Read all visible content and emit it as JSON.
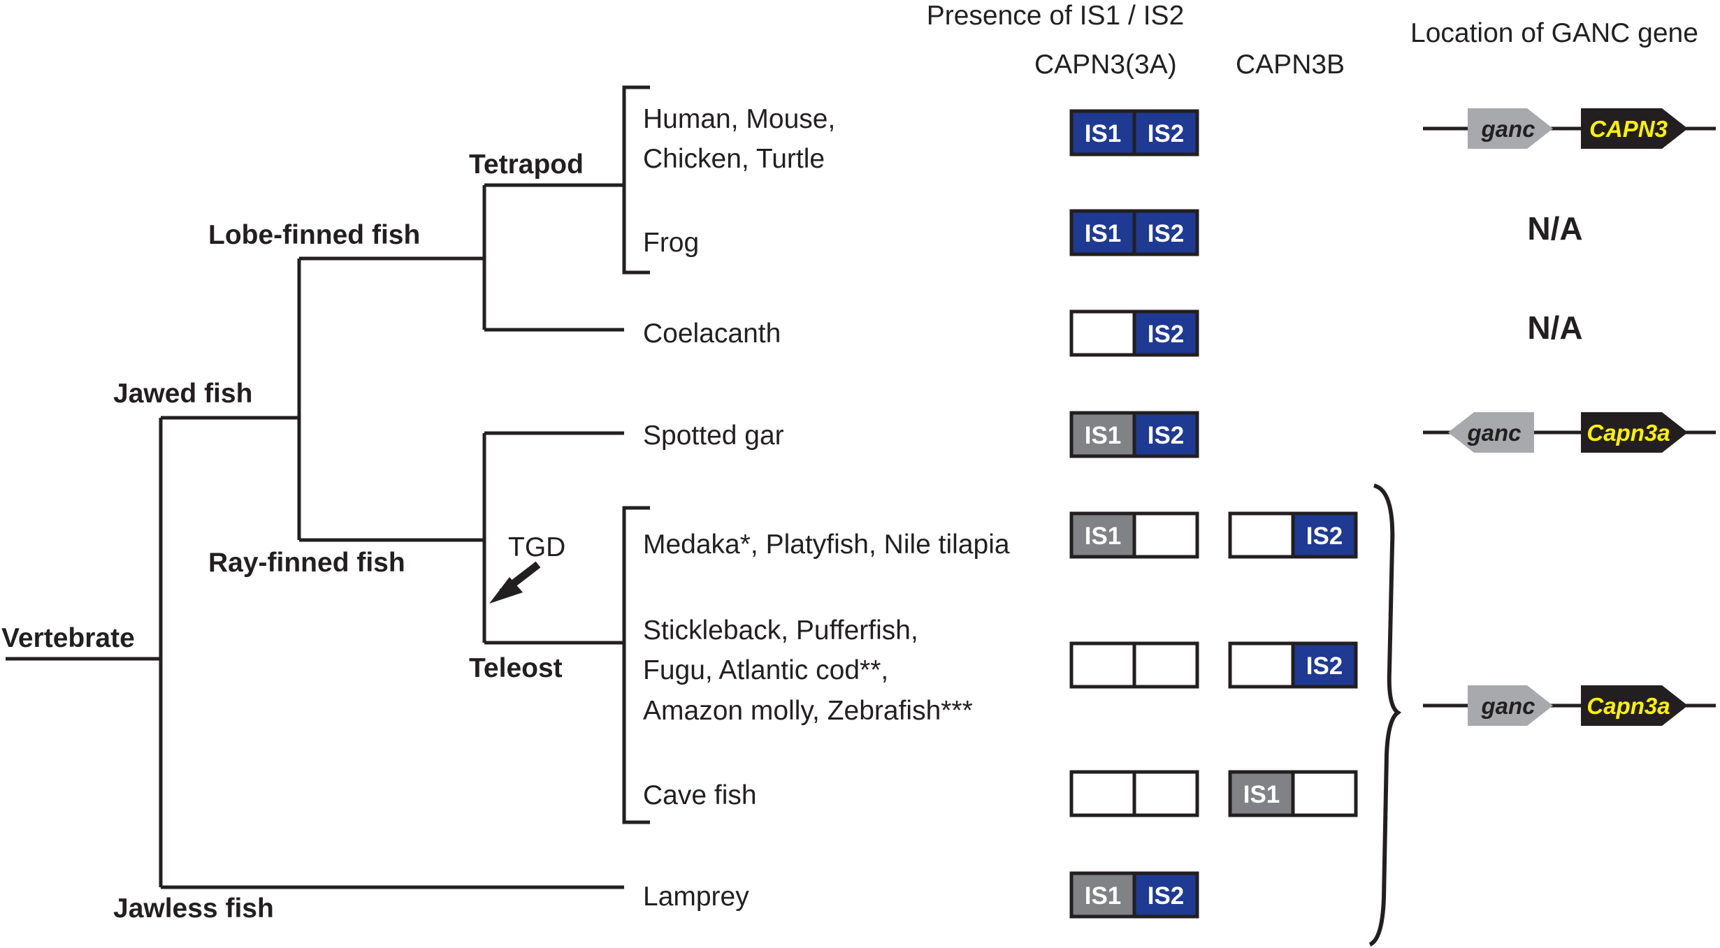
{
  "headers": {
    "presence": "Presence of IS1 / IS2",
    "capn3a": "CAPN3(3A)",
    "capn3b": "CAPN3B",
    "location": "Location of GANC gene"
  },
  "tree": {
    "vertebrate": "Vertebrate",
    "jawed": "Jawed fish",
    "jawless": "Jawless fish",
    "lobe": "Lobe-finned fish",
    "ray": "Ray-finned fish",
    "tetrapod": "Tetrapod",
    "teleost": "Teleost",
    "tgd": "TGD"
  },
  "species": {
    "human_line1": "Human, Mouse,",
    "human_line2": "Chicken, Turtle",
    "frog": "Frog",
    "coelacanth": "Coelacanth",
    "gar": "Spotted gar",
    "medaka": "Medaka*, Platyfish, Nile tilapia",
    "stickle_line1": "Stickleback, Pufferfish,",
    "stickle_line2": "Fugu, Atlantic cod**,",
    "stickle_line3": "Amazon molly, Zebrafish***",
    "cave": "Cave fish",
    "lamprey": "Lamprey"
  },
  "presence_rows": [
    {
      "species": "Human, Mouse, Chicken, Turtle",
      "capn3a": [
        "IS1",
        "IS2"
      ],
      "capn3b": null
    },
    {
      "species": "Frog",
      "capn3a": [
        "IS1",
        "IS2"
      ],
      "capn3b": null
    },
    {
      "species": "Coelacanth",
      "capn3a": [
        "",
        "IS2"
      ],
      "capn3b": null
    },
    {
      "species": "Spotted gar",
      "capn3a": [
        "IS1",
        "IS2"
      ],
      "capn3b": null
    },
    {
      "species": "Medaka*, Platyfish, Nile tilapia",
      "capn3a": [
        "IS1",
        ""
      ],
      "capn3b": [
        "",
        "IS2"
      ]
    },
    {
      "species": "Stickleback, Pufferfish, Fugu, Atlantic cod**, Amazon molly, Zebrafish***",
      "capn3a": [
        "",
        ""
      ],
      "capn3b": [
        "",
        "IS2"
      ]
    },
    {
      "species": "Cave fish",
      "capn3a": [
        "",
        ""
      ],
      "capn3b": [
        "IS1",
        ""
      ]
    },
    {
      "species": "Lamprey",
      "capn3a": [
        "IS1",
        "IS2"
      ],
      "capn3b": null
    }
  ],
  "boxes": {
    "is1": "IS1",
    "is2": "IS2"
  },
  "location": {
    "tetrapod": {
      "ganc": "ganc",
      "capn": "CAPN3"
    },
    "frog_na": "N/A",
    "coelacanth_na": "N/A",
    "gar": {
      "ganc": "ganc",
      "capn": "Capn3a"
    },
    "teleost_lamprey": {
      "ganc": "ganc",
      "capn": "Capn3a"
    }
  },
  "colors": {
    "is2_blue": "#1f3a93",
    "is1_gray": "#808285",
    "ganc_gray": "#a7a9ac",
    "capn_yellow": "#fff200",
    "line": "#231f20"
  }
}
